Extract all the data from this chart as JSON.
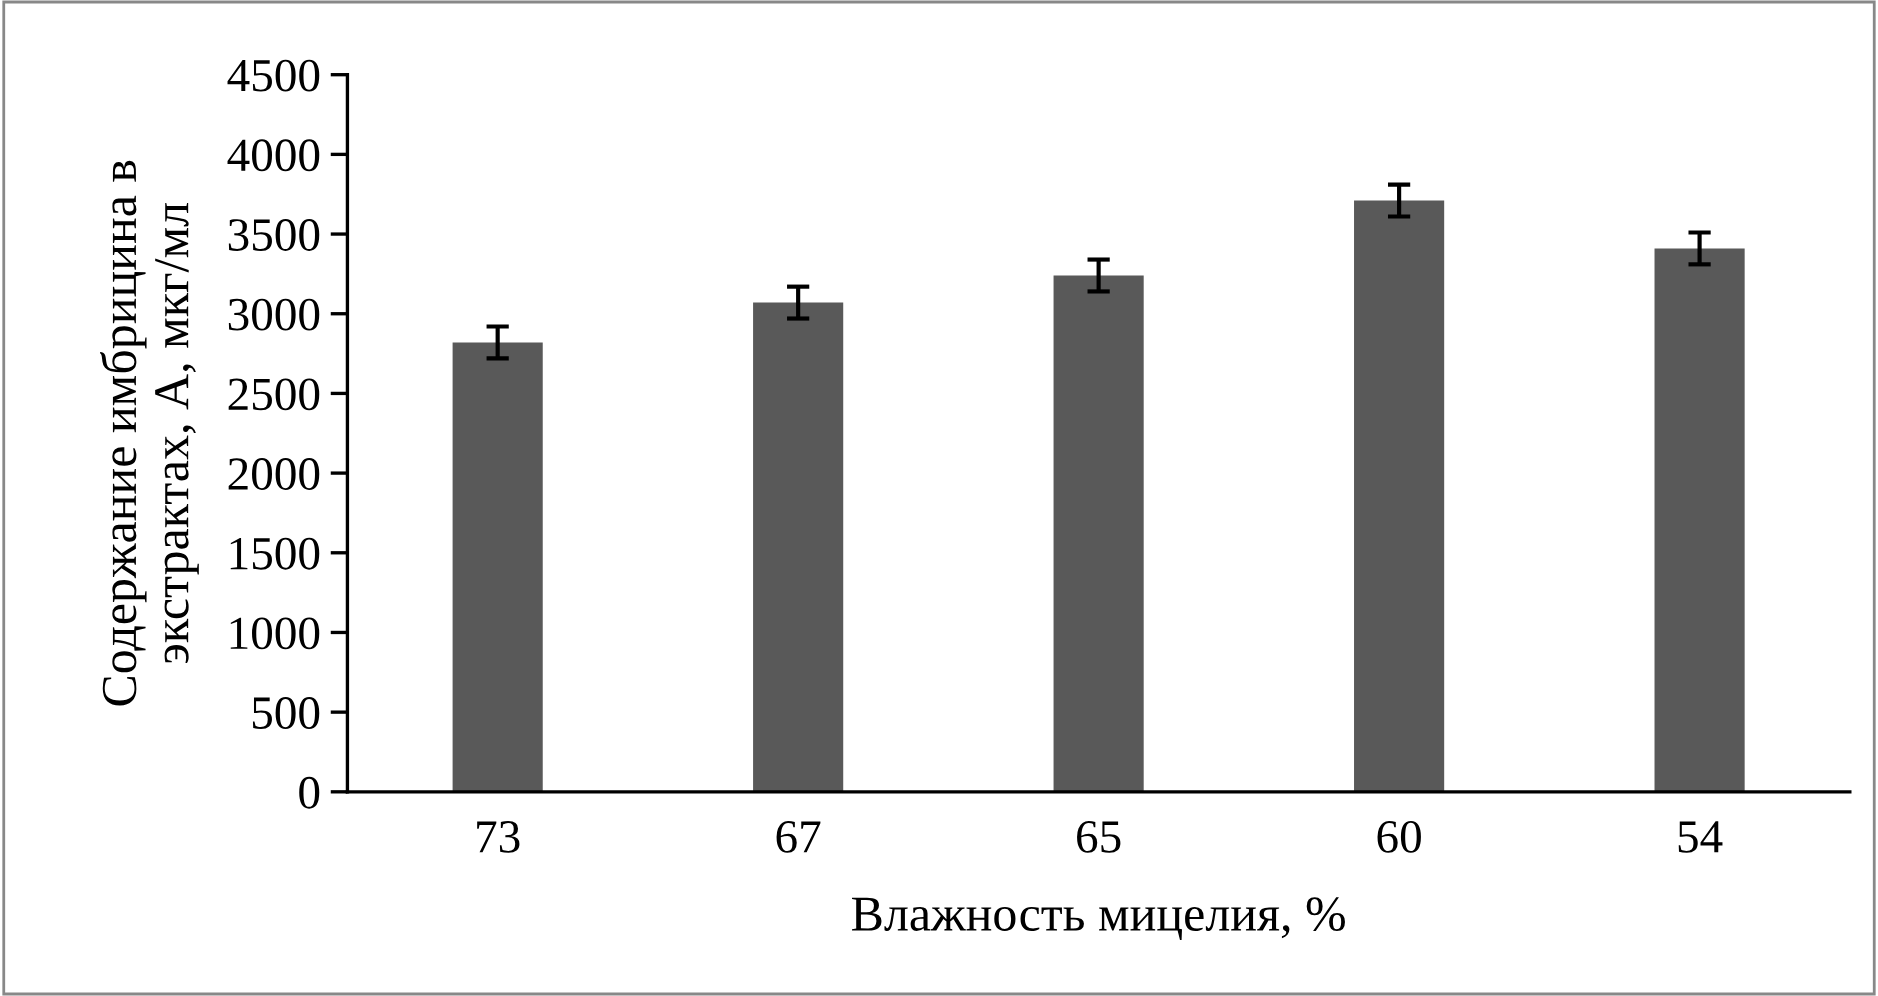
{
  "chart_data": {
    "type": "bar",
    "xlabel": "Влажность мицелия, %",
    "ylabel": "Содержание имбрицина в\nэкстрактах, А, мкг/мл",
    "categories": [
      "73",
      "67",
      "65",
      "60",
      "54"
    ],
    "values": [
      2820,
      3070,
      3240,
      3710,
      3410
    ],
    "errors": [
      100,
      100,
      100,
      100,
      100
    ],
    "color": "#595959",
    "ylim": [
      0,
      4500
    ],
    "yticks": [
      0,
      500,
      1000,
      1500,
      2000,
      2500,
      3000,
      3500,
      4000,
      4500
    ],
    "grid": false,
    "legend": false
  }
}
